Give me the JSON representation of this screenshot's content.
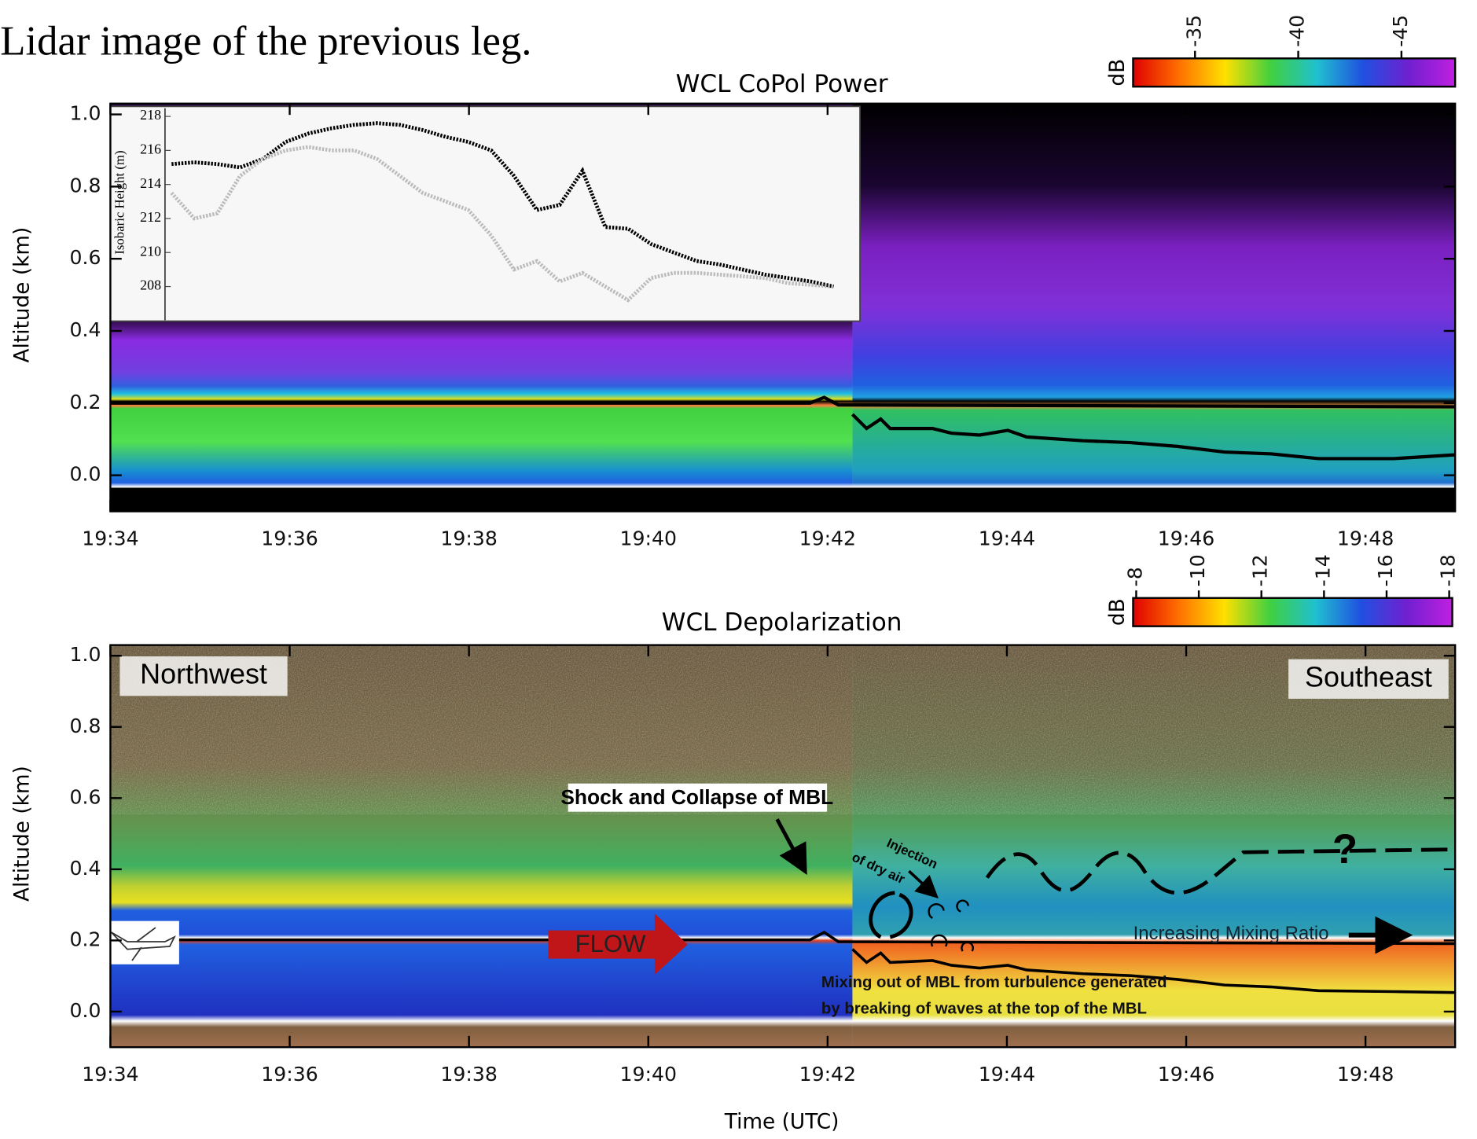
{
  "heading": "Lidar image of the previous leg.",
  "chart_data": [
    {
      "type": "heatmap",
      "title": "WCL CoPol Power",
      "y_label": "Altitude (km)",
      "xlim": [
        "19:34",
        "19:49"
      ],
      "xticks": [
        "19:34",
        "19:36",
        "19:38",
        "19:40",
        "19:42",
        "19:44",
        "19:46",
        "19:48"
      ],
      "ylim": [
        -0.1,
        1.03
      ],
      "yticks": [
        {
          "value": 0,
          "label": "0.0"
        },
        0.2,
        0.4,
        0.6,
        0.8,
        {
          "value": 1,
          "label": "1.0"
        }
      ],
      "colorbar": {
        "label": "dB",
        "clim": [
          -32,
          -47.6
        ],
        "ticks": [
          -35,
          -40,
          -45
        ],
        "colors": [
          "#e00000",
          "#ff7000",
          "#ffe000",
          "#40d040",
          "#20c0d0",
          "#2050e0",
          "#7020d0",
          "#c020e0"
        ]
      }
    },
    {
      "type": "line",
      "y_label": "Isobaric Height (m)",
      "ylim": [
        206.3,
        218.2
      ],
      "yticks": [
        208,
        210,
        212,
        214,
        216,
        218
      ],
      "series": [
        {
          "color": "#000000",
          "values": [
            215.2,
            215.3,
            215.2,
            215.0,
            215.5,
            216.5,
            217.0,
            217.3,
            217.5,
            217.6,
            217.5,
            217.2,
            216.8,
            216.5,
            216.0,
            214.5,
            212.5,
            212.8,
            214.8,
            211.5,
            211.4,
            210.5,
            210.0,
            209.5,
            209.3,
            209.0,
            208.7,
            208.5,
            208.3,
            208.0
          ]
        },
        {
          "color": "#bbbbbb",
          "values": [
            213.5,
            212.0,
            212.3,
            214.5,
            215.5,
            216.0,
            216.2,
            216.0,
            216.0,
            215.5,
            214.5,
            213.5,
            213.0,
            212.5,
            211.0,
            209.0,
            209.5,
            208.3,
            208.8,
            208.0,
            207.2,
            208.5,
            208.8,
            208.8,
            208.7,
            208.6,
            208.5,
            208.2,
            208.1,
            208.0
          ]
        }
      ]
    },
    {
      "type": "heatmap",
      "title": "WCL Depolarization",
      "y_label": "Altitude (km)",
      "x_label": "Time (UTC)",
      "xlim": [
        "19:34",
        "19:49"
      ],
      "xticks": [
        "19:34",
        "19:36",
        "19:38",
        "19:40",
        "19:42",
        "19:44",
        "19:46",
        "19:48"
      ],
      "ylim": [
        -0.1,
        1.03
      ],
      "yticks": [
        {
          "value": 0,
          "label": "0.0"
        },
        0.2,
        0.4,
        0.6,
        0.8,
        {
          "value": 1,
          "label": "1.0"
        }
      ],
      "colorbar": {
        "label": "dB",
        "clim": [
          -7.9,
          -18.1
        ],
        "ticks": [
          -8,
          -10,
          -12,
          -14,
          -16,
          -18
        ],
        "colors": [
          "#e00000",
          "#ff7000",
          "#ffe000",
          "#40d040",
          "#20c0d0",
          "#2050e0",
          "#7020d0",
          "#c020e0"
        ]
      },
      "annotations": {
        "northwest": "Northwest",
        "southeast": "Southeast",
        "shock": "Shock and Collapse of MBL",
        "injection": [
          "Injection",
          "of dry air"
        ],
        "flow": "FLOW",
        "mixing_ratio": "Increasing Mixing Ratio",
        "question": "?",
        "mixing_note": [
          "Mixing out of MBL from turbulence generated",
          "by breaking of waves at the top of the MBL"
        ]
      }
    }
  ]
}
